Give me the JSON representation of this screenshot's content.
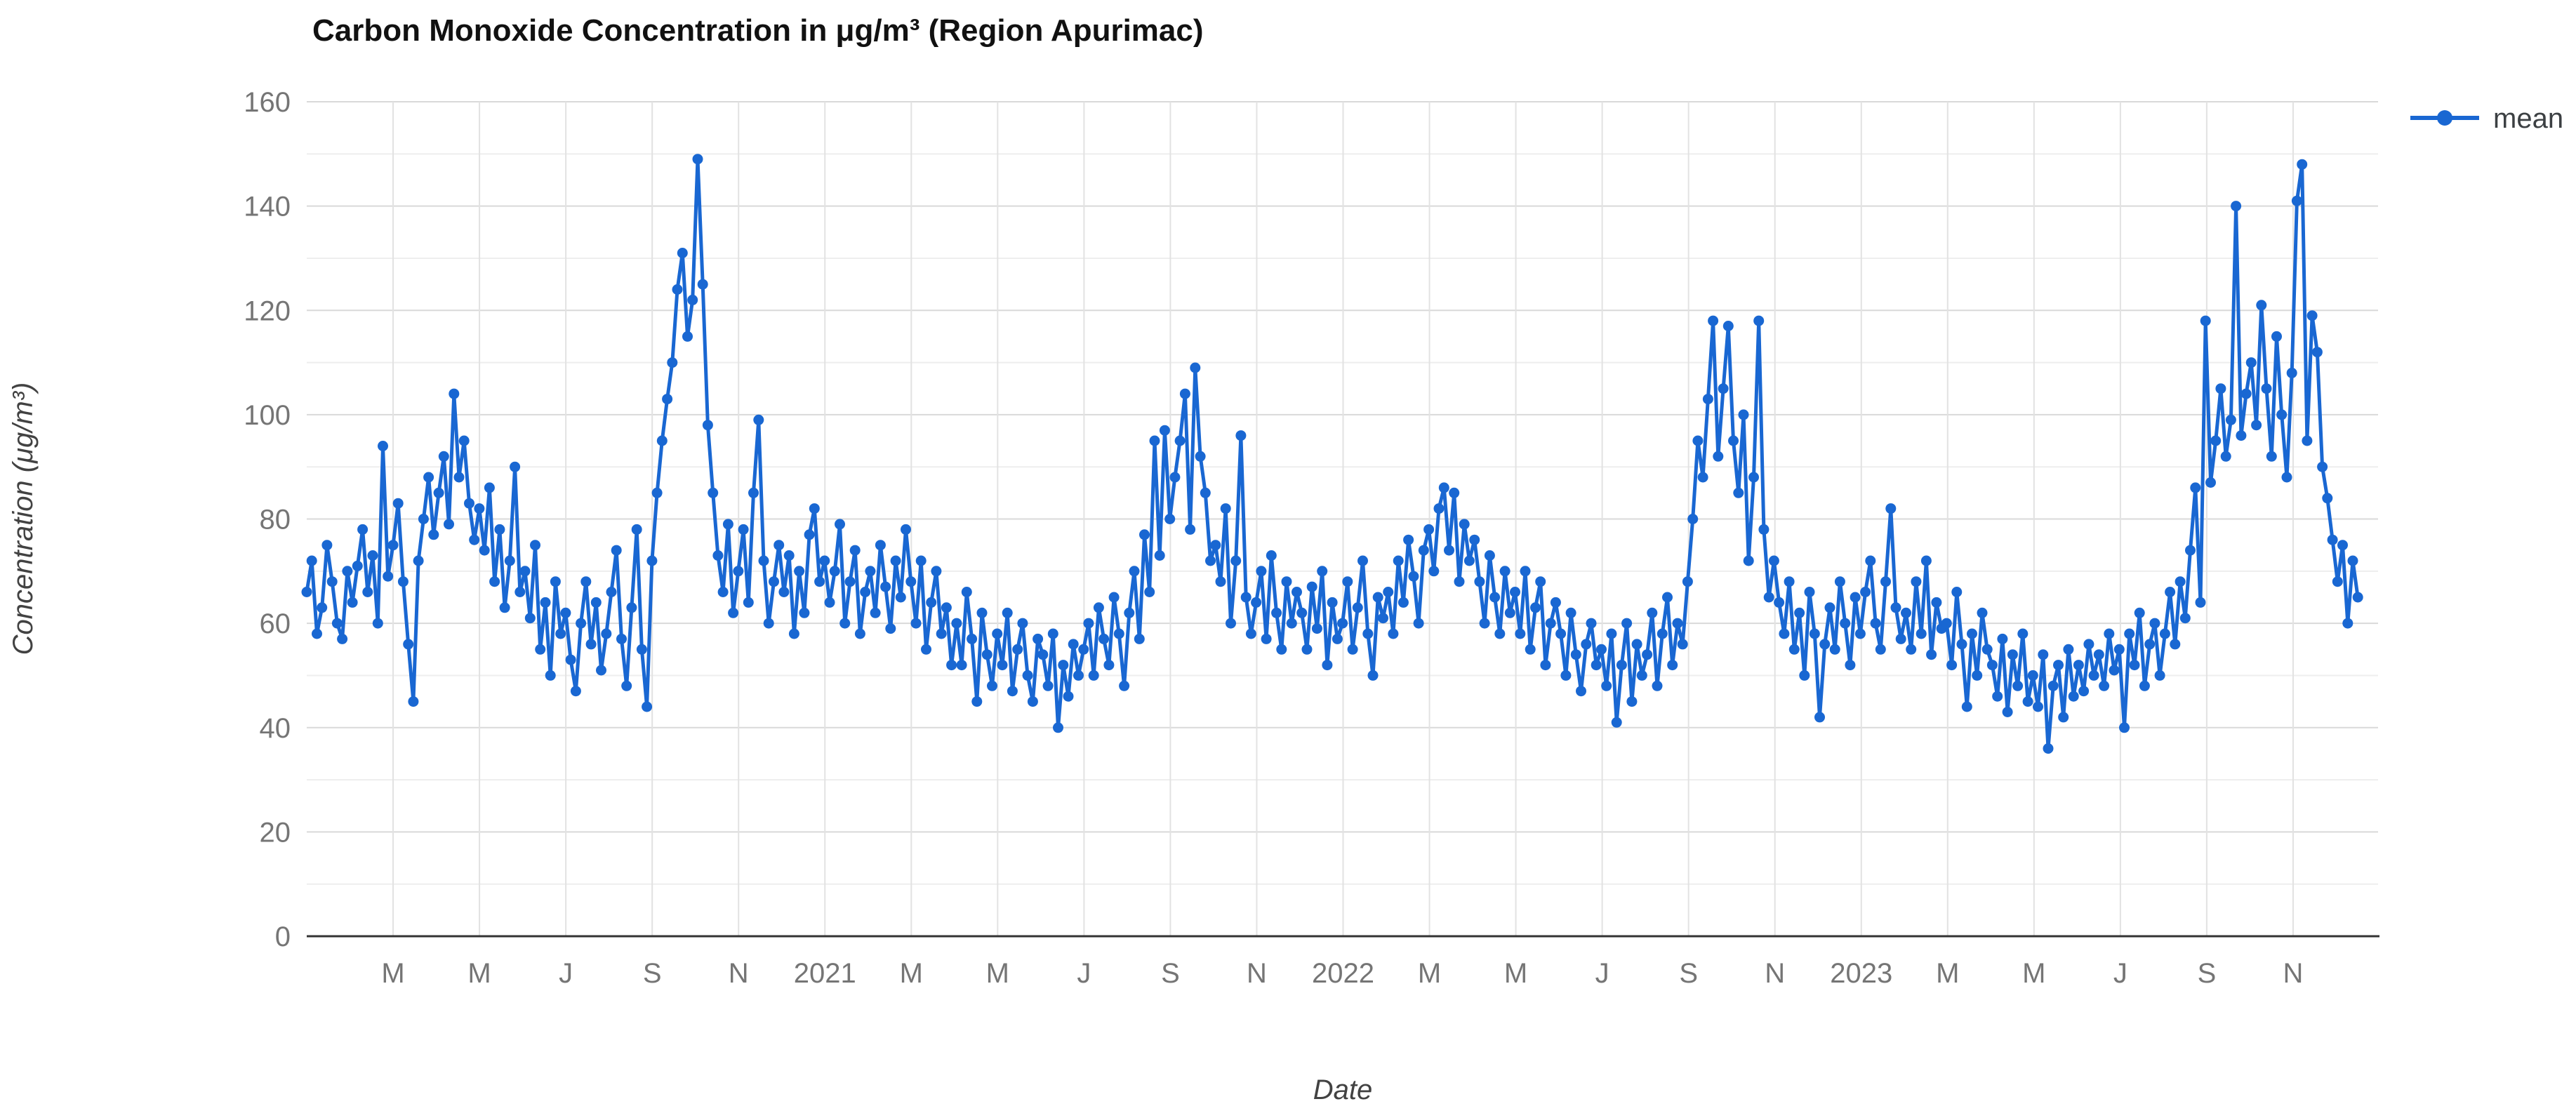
{
  "title": "Carbon Monoxide Concentration in μg/m³ (Region Apurimac)",
  "legend": {
    "label": "mean",
    "position": "top-right"
  },
  "colors": {
    "series_blue": "#1967d2",
    "grid_major": "#d9d9d9",
    "grid_minor": "#eeeeee",
    "grid_vertical": "#e2e2e2",
    "axis_line": "#333333",
    "tick_text": "#757575",
    "axis_title_text": "#424242",
    "title_text": "#111111",
    "legend_text": "#3c4043",
    "background": "#ffffff"
  },
  "chart_data": {
    "type": "line",
    "title": "Carbon Monoxide Concentration in μg/m³ (Region Apurimac)",
    "xlabel": "Date",
    "ylabel": "Concentration (μg/m³)",
    "ylim": [
      0,
      160
    ],
    "y_major_step": 20,
    "y_minor_step": 10,
    "y_tick_labels": [
      "0",
      "20",
      "40",
      "60",
      "80",
      "100",
      "120",
      "140",
      "160"
    ],
    "grid": true,
    "legend_position": "right",
    "x_domain": {
      "start": "2020-01-01",
      "end": "2024-01-01",
      "unit": "months",
      "range": [
        0,
        48
      ]
    },
    "x_ticks": [
      {
        "month": 2,
        "label": "M"
      },
      {
        "month": 4,
        "label": "M"
      },
      {
        "month": 6,
        "label": "J"
      },
      {
        "month": 8,
        "label": "S"
      },
      {
        "month": 10,
        "label": "N"
      },
      {
        "month": 12,
        "label": "2021"
      },
      {
        "month": 14,
        "label": "M"
      },
      {
        "month": 16,
        "label": "M"
      },
      {
        "month": 18,
        "label": "J"
      },
      {
        "month": 20,
        "label": "S"
      },
      {
        "month": 22,
        "label": "N"
      },
      {
        "month": 24,
        "label": "2022"
      },
      {
        "month": 26,
        "label": "M"
      },
      {
        "month": 28,
        "label": "M"
      },
      {
        "month": 30,
        "label": "J"
      },
      {
        "month": 32,
        "label": "S"
      },
      {
        "month": 34,
        "label": "N"
      },
      {
        "month": 36,
        "label": "2023"
      },
      {
        "month": 38,
        "label": "M"
      },
      {
        "month": 40,
        "label": "M"
      },
      {
        "month": 42,
        "label": "J"
      },
      {
        "month": 44,
        "label": "S"
      },
      {
        "month": 46,
        "label": "N"
      }
    ],
    "series": [
      {
        "name": "mean",
        "color": "#1967d2",
        "estimated_from_plot": true,
        "date_start": "2020-01-01",
        "date_end": "2023-12-15",
        "values": [
          66,
          72,
          58,
          63,
          75,
          68,
          60,
          57,
          70,
          64,
          71,
          78,
          66,
          73,
          60,
          94,
          69,
          75,
          83,
          68,
          56,
          45,
          72,
          80,
          88,
          77,
          85,
          92,
          79,
          104,
          88,
          95,
          83,
          76,
          82,
          74,
          86,
          68,
          78,
          63,
          72,
          90,
          66,
          70,
          61,
          75,
          55,
          64,
          50,
          68,
          58,
          62,
          53,
          47,
          60,
          68,
          56,
          64,
          51,
          58,
          66,
          74,
          57,
          48,
          63,
          78,
          55,
          44,
          72,
          85,
          95,
          103,
          110,
          124,
          131,
          115,
          122,
          149,
          125,
          98,
          85,
          73,
          66,
          79,
          62,
          70,
          78,
          64,
          85,
          99,
          72,
          60,
          68,
          75,
          66,
          73,
          58,
          70,
          62,
          77,
          82,
          68,
          72,
          64,
          70,
          79,
          60,
          68,
          74,
          58,
          66,
          70,
          62,
          75,
          67,
          59,
          72,
          65,
          78,
          68,
          60,
          72,
          55,
          64,
          70,
          58,
          63,
          52,
          60,
          52,
          66,
          57,
          45,
          62,
          54,
          48,
          58,
          52,
          62,
          47,
          55,
          60,
          50,
          45,
          57,
          54,
          48,
          58,
          40,
          52,
          46,
          56,
          50,
          55,
          60,
          50,
          63,
          57,
          52,
          65,
          58,
          48,
          62,
          70,
          57,
          77,
          66,
          95,
          73,
          97,
          80,
          88,
          95,
          104,
          78,
          109,
          92,
          85,
          72,
          75,
          68,
          82,
          60,
          72,
          96,
          65,
          58,
          64,
          70,
          57,
          73,
          62,
          55,
          68,
          60,
          66,
          62,
          55,
          67,
          59,
          70,
          52,
          64,
          57,
          60,
          68,
          55,
          63,
          72,
          58,
          50,
          65,
          61,
          66,
          58,
          72,
          64,
          76,
          69,
          60,
          74,
          78,
          70,
          82,
          86,
          74,
          85,
          68,
          79,
          72,
          76,
          68,
          60,
          73,
          65,
          58,
          70,
          62,
          66,
          58,
          70,
          55,
          63,
          68,
          52,
          60,
          64,
          58,
          50,
          62,
          54,
          47,
          56,
          60,
          52,
          55,
          48,
          58,
          41,
          52,
          60,
          45,
          56,
          50,
          54,
          62,
          48,
          58,
          65,
          52,
          60,
          56,
          68,
          80,
          95,
          88,
          103,
          118,
          92,
          105,
          117,
          95,
          85,
          100,
          72,
          88,
          118,
          78,
          65,
          72,
          64,
          58,
          68,
          55,
          62,
          50,
          66,
          58,
          42,
          56,
          63,
          55,
          68,
          60,
          52,
          65,
          58,
          66,
          72,
          60,
          55,
          68,
          82,
          63,
          57,
          62,
          55,
          68,
          58,
          72,
          54,
          64,
          59,
          60,
          52,
          66,
          56,
          44,
          58,
          50,
          62,
          55,
          52,
          46,
          57,
          43,
          54,
          48,
          58,
          45,
          50,
          44,
          54,
          36,
          48,
          52,
          42,
          55,
          46,
          52,
          47,
          56,
          50,
          54,
          48,
          58,
          51,
          55,
          40,
          58,
          52,
          62,
          48,
          56,
          60,
          50,
          58,
          66,
          56,
          68,
          61,
          74,
          86,
          64,
          118,
          87,
          95,
          105,
          92,
          99,
          140,
          96,
          104,
          110,
          98,
          121,
          105,
          92,
          115,
          100,
          88,
          108,
          141,
          148,
          95,
          119,
          112,
          90,
          84,
          76,
          68,
          75,
          60,
          72,
          65
        ]
      }
    ]
  }
}
